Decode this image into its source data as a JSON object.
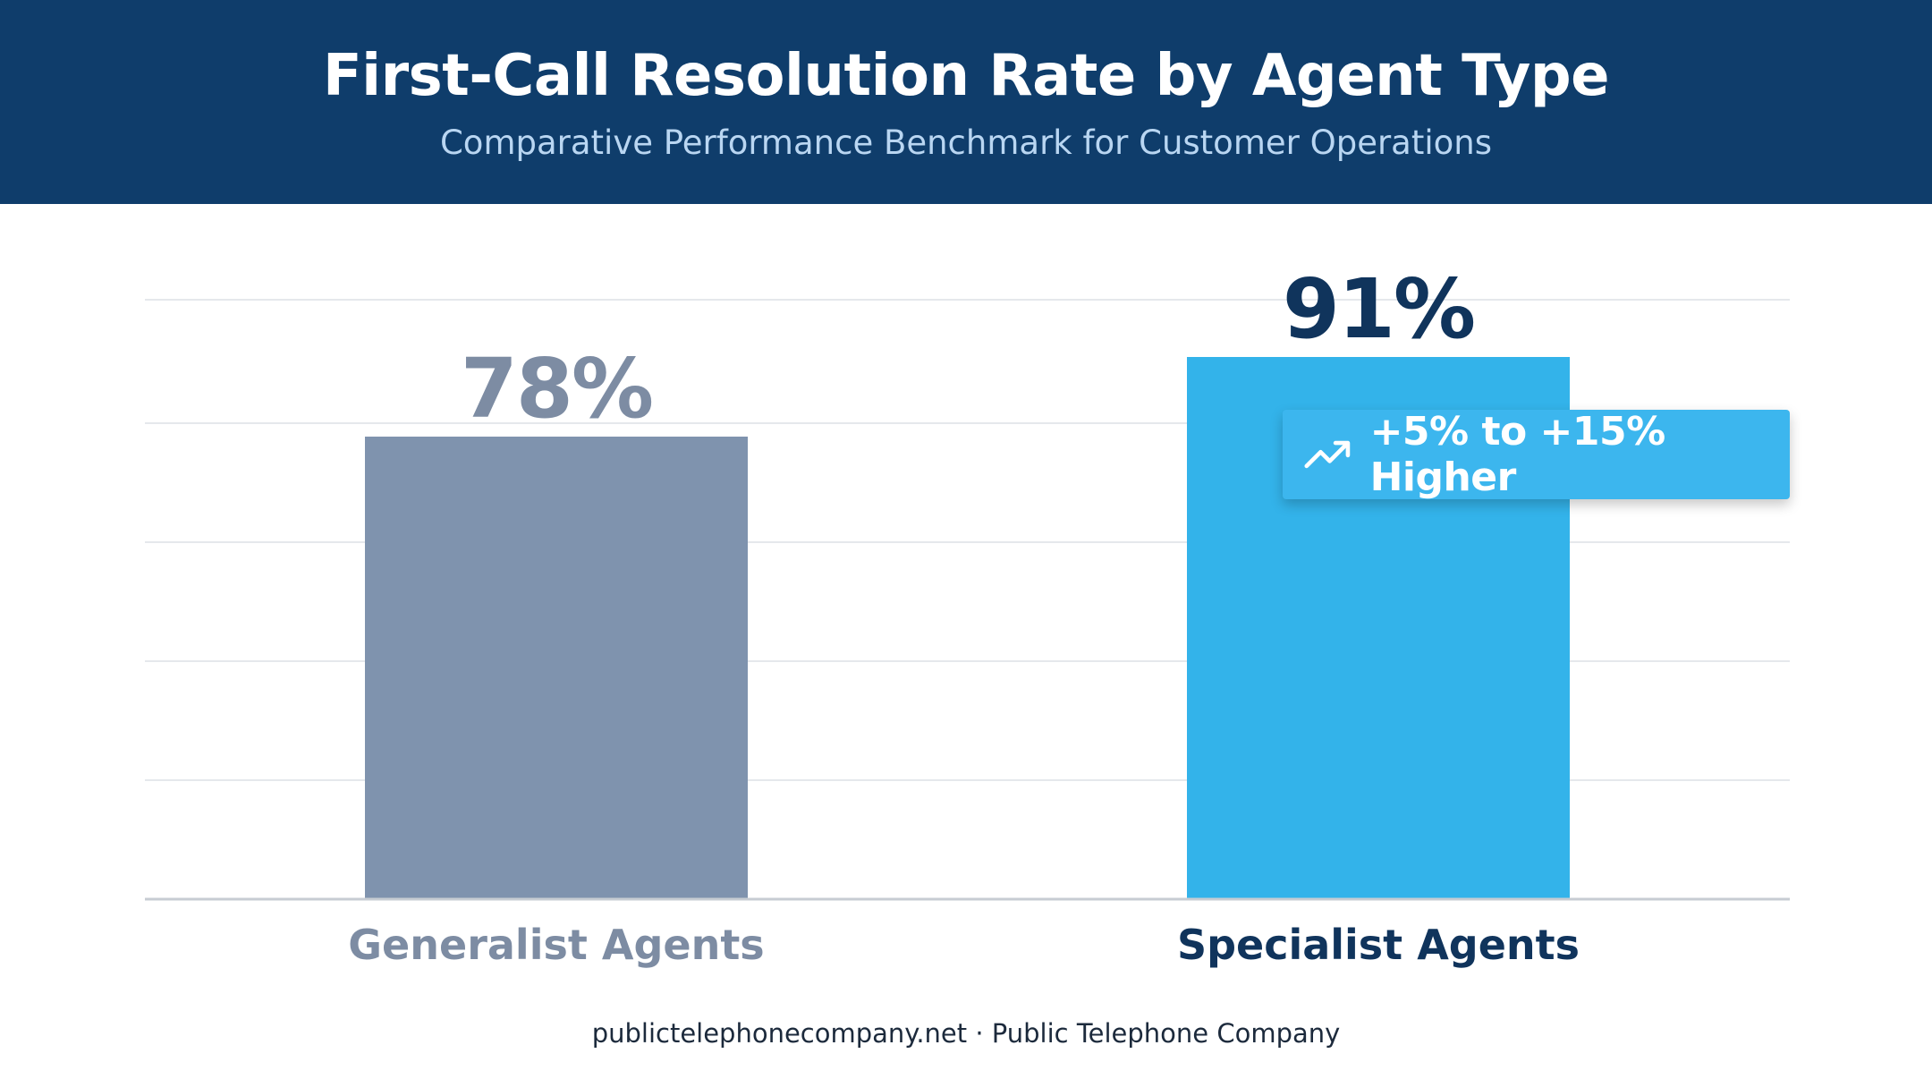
{
  "header": {
    "title": "First-Call Resolution Rate by Agent Type",
    "subtitle": "Comparative Performance Benchmark for Customer Operations"
  },
  "callout": {
    "icon": "trending-up-icon",
    "text": "+5% to +15% Higher"
  },
  "footer": {
    "text": "publictelephonecompany.net · Public Telephone Company"
  },
  "colors": {
    "header_bg": "#0f3d6b",
    "generalist_bar": "#7f93ae",
    "specialist_bar": "#33b3ea",
    "generalist_text": "#7d8ca3",
    "specialist_text": "#10345c"
  },
  "chart_data": {
    "type": "bar",
    "categories": [
      "Generalist Agents",
      "Specialist Agents"
    ],
    "values": [
      78,
      91
    ],
    "value_labels": [
      "78%",
      "91%"
    ],
    "ylim": [
      0,
      100
    ],
    "grid": true,
    "xlabel": "",
    "ylabel": ""
  }
}
